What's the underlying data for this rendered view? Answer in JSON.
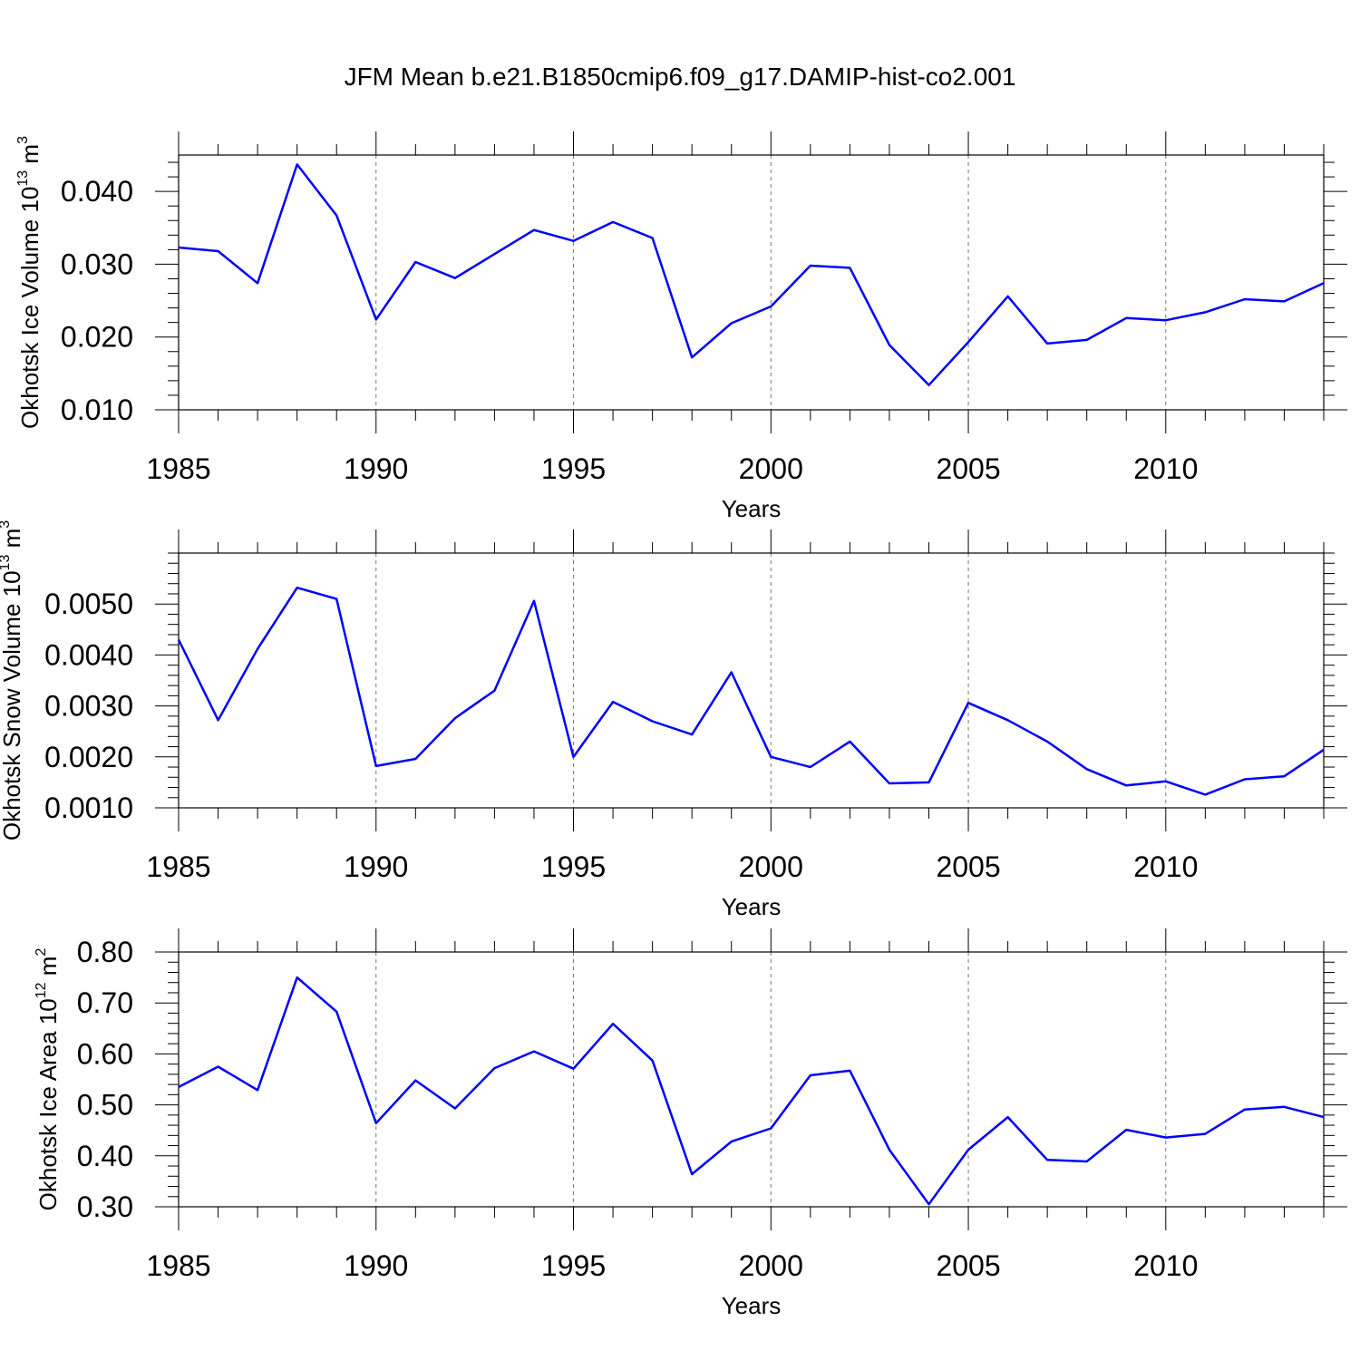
{
  "figure_title": "JFM Mean b.e21.B1850cmip6.f09_g17.DAMIP-hist-co2.001",
  "colors": {
    "series": "#0000ff",
    "axes": "#000000",
    "grid": "#777777"
  },
  "chart_data": [
    {
      "type": "line",
      "title": "JFM Mean b.e21.B1850cmip6.f09_g17.DAMIP-hist-co2.001",
      "ylabel": {
        "text": "Okhotsk Ice Volume 10",
        "sup": "13",
        "unit": " m",
        "unit_sup": "3"
      },
      "xlabel": "Years",
      "xlim": [
        1985,
        2014
      ],
      "ylim": [
        0.01,
        0.045
      ],
      "yticks": [
        0.01,
        0.02,
        0.03,
        0.04
      ],
      "ytick_labels": [
        "0.010",
        "0.020",
        "0.030",
        "0.040"
      ],
      "yminor_step": 0.002,
      "xticks": [
        1985,
        1990,
        1995,
        2000,
        2005,
        2010
      ],
      "xtick_labels": [
        "1985",
        "1990",
        "1995",
        "2000",
        "2005",
        "2010"
      ],
      "grid_x": [
        1990,
        1995,
        2000,
        2005,
        2010
      ],
      "x": [
        1985,
        1986,
        1987,
        1988,
        1989,
        1990,
        1991,
        1992,
        1993,
        1994,
        1995,
        1996,
        1997,
        1998,
        1999,
        2000,
        2001,
        2002,
        2003,
        2004,
        2005,
        2006,
        2007,
        2008,
        2009,
        2010,
        2011,
        2012,
        2013,
        2014
      ],
      "series": [
        {
          "name": "Okhotsk Ice Volume",
          "values": [
            0.0323,
            0.0318,
            0.0274,
            0.0437,
            0.0367,
            0.0224,
            0.0303,
            0.0281,
            0.0314,
            0.0347,
            0.0332,
            0.0358,
            0.0336,
            0.0172,
            0.0219,
            0.0242,
            0.0298,
            0.0295,
            0.0189,
            0.0134,
            0.0193,
            0.0256,
            0.0191,
            0.0196,
            0.0226,
            0.0223,
            0.0234,
            0.0252,
            0.0249,
            0.0274
          ]
        }
      ]
    },
    {
      "type": "line",
      "ylabel": {
        "text": "Okhotsk Snow Volume 10",
        "sup": "13",
        "unit": " m",
        "unit_sup": "3"
      },
      "xlabel": "Years",
      "xlim": [
        1985,
        2014
      ],
      "ylim": [
        0.001,
        0.006
      ],
      "yticks": [
        0.001,
        0.002,
        0.003,
        0.004,
        0.005
      ],
      "ytick_labels": [
        "0.0010",
        "0.0020",
        "0.0030",
        "0.0040",
        "0.0050"
      ],
      "yminor_step": 0.0002,
      "xticks": [
        1985,
        1990,
        1995,
        2000,
        2005,
        2010
      ],
      "xtick_labels": [
        "1985",
        "1990",
        "1995",
        "2000",
        "2005",
        "2010"
      ],
      "grid_x": [
        1990,
        1995,
        2000,
        2005,
        2010
      ],
      "x": [
        1985,
        1986,
        1987,
        1988,
        1989,
        1990,
        1991,
        1992,
        1993,
        1994,
        1995,
        1996,
        1997,
        1998,
        1999,
        2000,
        2001,
        2002,
        2003,
        2004,
        2005,
        2006,
        2007,
        2008,
        2009,
        2010,
        2011,
        2012,
        2013,
        2014
      ],
      "series": [
        {
          "name": "Okhotsk Snow Volume",
          "values": [
            0.0043,
            0.00272,
            0.00412,
            0.00532,
            0.0051,
            0.00182,
            0.00196,
            0.00276,
            0.0033,
            0.00506,
            0.002,
            0.00308,
            0.0027,
            0.00244,
            0.00366,
            0.002,
            0.0018,
            0.0023,
            0.00148,
            0.0015,
            0.00306,
            0.00272,
            0.0023,
            0.00176,
            0.00144,
            0.00152,
            0.00126,
            0.00156,
            0.00162,
            0.00214
          ]
        }
      ]
    },
    {
      "type": "line",
      "ylabel": {
        "text": "Okhotsk Ice Area 10",
        "sup": "12",
        "unit": " m",
        "unit_sup": "2"
      },
      "xlabel": "Years",
      "xlim": [
        1985,
        2014
      ],
      "ylim": [
        0.3,
        0.8
      ],
      "yticks": [
        0.3,
        0.4,
        0.5,
        0.6,
        0.7,
        0.8
      ],
      "ytick_labels": [
        "0.30",
        "0.40",
        "0.50",
        "0.60",
        "0.70",
        "0.80"
      ],
      "yminor_step": 0.02,
      "xticks": [
        1985,
        1990,
        1995,
        2000,
        2005,
        2010
      ],
      "xtick_labels": [
        "1985",
        "1990",
        "1995",
        "2000",
        "2005",
        "2010"
      ],
      "grid_x": [
        1990,
        1995,
        2000,
        2005,
        2010
      ],
      "x": [
        1985,
        1986,
        1987,
        1988,
        1989,
        1990,
        1991,
        1992,
        1993,
        1994,
        1995,
        1996,
        1997,
        1998,
        1999,
        2000,
        2001,
        2002,
        2003,
        2004,
        2005,
        2006,
        2007,
        2008,
        2009,
        2010,
        2011,
        2012,
        2013,
        2014
      ],
      "series": [
        {
          "name": "Okhotsk Ice Area",
          "values": [
            0.535,
            0.575,
            0.529,
            0.75,
            0.683,
            0.464,
            0.548,
            0.493,
            0.572,
            0.605,
            0.571,
            0.659,
            0.587,
            0.364,
            0.428,
            0.454,
            0.558,
            0.567,
            0.412,
            0.305,
            0.412,
            0.476,
            0.392,
            0.389,
            0.451,
            0.436,
            0.443,
            0.491,
            0.496,
            0.476
          ]
        }
      ]
    }
  ]
}
